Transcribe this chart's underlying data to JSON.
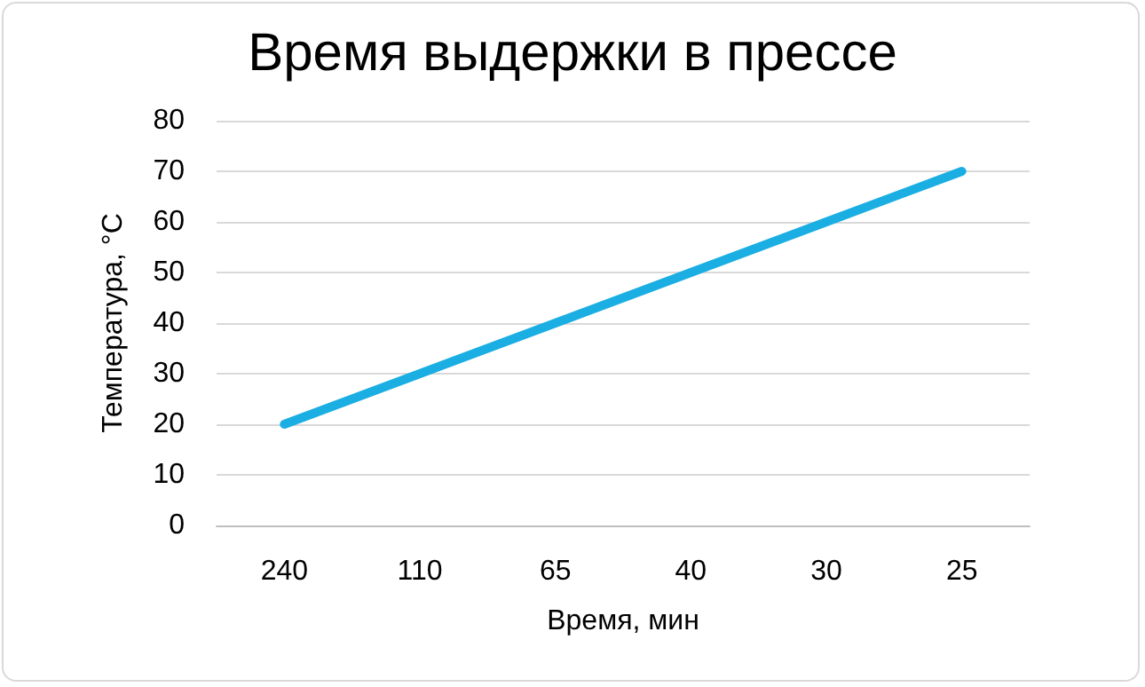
{
  "chart_data": {
    "type": "line",
    "title": "Время выдержки в прессе",
    "xlabel": "Время, мин",
    "ylabel": "Температура, °C",
    "categories": [
      "240",
      "110",
      "65",
      "40",
      "30",
      "25"
    ],
    "series": [
      {
        "color": "#1aaee3",
        "values": [
          20,
          30,
          40,
          50,
          60,
          70
        ]
      }
    ],
    "ylim": [
      0,
      80
    ],
    "yticks": [
      0,
      10,
      20,
      30,
      40,
      50,
      60,
      70,
      80
    ],
    "grid": "y",
    "marker": "none",
    "line_style": "solid"
  }
}
